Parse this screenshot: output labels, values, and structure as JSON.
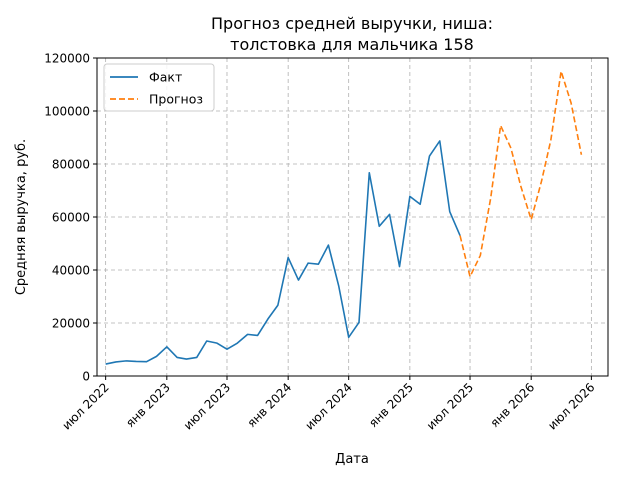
{
  "chart_data": {
    "type": "line",
    "title_lines": [
      "Прогноз средней выручки, ниша:",
      "толстовка для мальчика 158"
    ],
    "xlabel": "Дата",
    "ylabel": "Средняя выручка, руб.",
    "ylim": [
      0,
      120000
    ],
    "xlim": [
      "2022-06-05",
      "2026-08-20"
    ],
    "yticks": [
      0,
      20000,
      40000,
      60000,
      80000,
      100000,
      120000
    ],
    "xticks": [
      {
        "date": "2022-07-01",
        "label": "июл 2022"
      },
      {
        "date": "2023-01-01",
        "label": "янв 2023"
      },
      {
        "date": "2023-07-01",
        "label": "июл 2023"
      },
      {
        "date": "2024-01-01",
        "label": "янв 2024"
      },
      {
        "date": "2024-07-01",
        "label": "июл 2024"
      },
      {
        "date": "2025-01-01",
        "label": "янв 2025"
      },
      {
        "date": "2025-07-01",
        "label": "июл 2025"
      },
      {
        "date": "2026-01-01",
        "label": "янв 2026"
      },
      {
        "date": "2026-07-01",
        "label": "июл 2026"
      }
    ],
    "grid": true,
    "legend_position": "top-left",
    "series": [
      {
        "name": "Факт",
        "color": "#1f77b4",
        "dash": "solid",
        "points": [
          [
            "2022-07-01",
            4500
          ],
          [
            "2022-08-01",
            5300
          ],
          [
            "2022-09-01",
            5700
          ],
          [
            "2022-10-01",
            5500
          ],
          [
            "2022-11-01",
            5400
          ],
          [
            "2022-12-01",
            7400
          ],
          [
            "2023-01-01",
            11000
          ],
          [
            "2023-02-01",
            7000
          ],
          [
            "2023-03-01",
            6400
          ],
          [
            "2023-04-01",
            7000
          ],
          [
            "2023-05-01",
            13200
          ],
          [
            "2023-06-01",
            12400
          ],
          [
            "2023-07-01",
            10100
          ],
          [
            "2023-08-01",
            12400
          ],
          [
            "2023-09-01",
            15700
          ],
          [
            "2023-10-01",
            15300
          ],
          [
            "2023-11-01",
            21500
          ],
          [
            "2023-12-01",
            26700
          ],
          [
            "2024-01-01",
            44700
          ],
          [
            "2024-02-01",
            36200
          ],
          [
            "2024-03-01",
            42600
          ],
          [
            "2024-04-01",
            42200
          ],
          [
            "2024-05-01",
            49400
          ],
          [
            "2024-06-01",
            34000
          ],
          [
            "2024-07-01",
            14600
          ],
          [
            "2024-08-01",
            20200
          ],
          [
            "2024-09-01",
            76700
          ],
          [
            "2024-10-01",
            56500
          ],
          [
            "2024-11-01",
            61000
          ],
          [
            "2024-12-01",
            41300
          ],
          [
            "2025-01-01",
            67800
          ],
          [
            "2025-02-01",
            64800
          ],
          [
            "2025-03-01",
            83000
          ],
          [
            "2025-04-01",
            88700
          ],
          [
            "2025-05-01",
            62000
          ],
          [
            "2025-06-01",
            53000
          ]
        ]
      },
      {
        "name": "Прогноз",
        "color": "#ff7f0e",
        "dash": "dashed",
        "points": [
          [
            "2025-06-01",
            53000
          ],
          [
            "2025-07-01",
            37500
          ],
          [
            "2025-08-01",
            45500
          ],
          [
            "2025-09-01",
            67000
          ],
          [
            "2025-10-01",
            94500
          ],
          [
            "2025-11-01",
            86000
          ],
          [
            "2025-12-01",
            71500
          ],
          [
            "2026-01-01",
            59000
          ],
          [
            "2026-02-01",
            73500
          ],
          [
            "2026-03-01",
            89000
          ],
          [
            "2026-04-01",
            115000
          ],
          [
            "2026-05-01",
            103000
          ],
          [
            "2026-06-01",
            83500
          ]
        ]
      }
    ]
  }
}
